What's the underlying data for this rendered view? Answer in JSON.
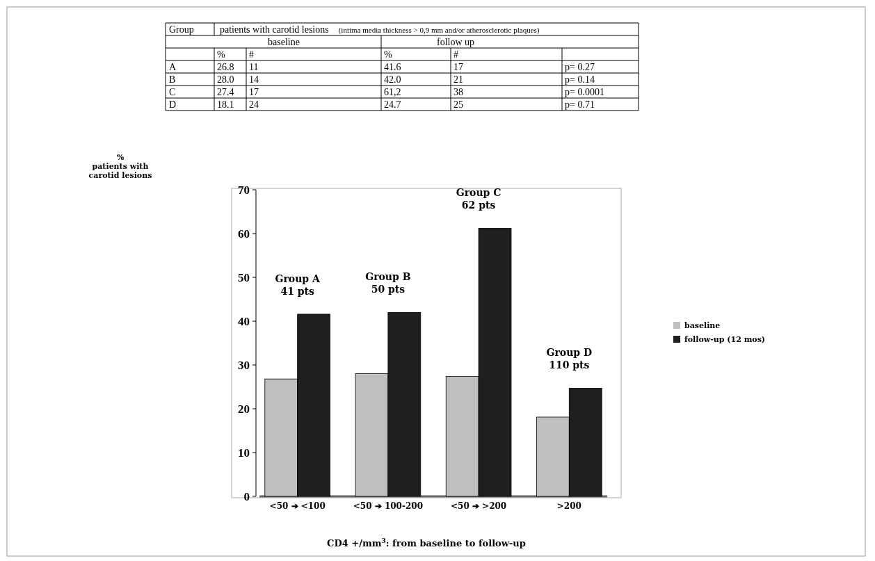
{
  "chart_data": [
    {
      "type": "other",
      "title": "patients with carotid lesions",
      "subtitle": "(intima media thickness > 0,9 mm and/or atherosclerotic plaques)",
      "categories": [
        "baseline",
        "follow up"
      ],
      "annotations": [
        "Group",
        "%",
        "#",
        "%",
        "#"
      ],
      "y_categories": [
        "A",
        "B",
        "C",
        "D"
      ],
      "cell_labels": [
        [
          "26.8",
          "11",
          "41.6",
          "17",
          "p= 0.27"
        ],
        [
          "28.0",
          "14",
          "42.0",
          "21",
          "p= 0.14"
        ],
        [
          "27.4",
          "17",
          "61,2",
          "38",
          "p= 0.0001"
        ],
        [
          "18.1",
          "24",
          "24.7",
          "25",
          "p= 0.71"
        ]
      ]
    },
    {
      "type": "bar",
      "categories": [
        "<50 ➔ <100",
        "<50 ➔ 100-200",
        "<50 ➔ >200",
        ">200"
      ],
      "series": [
        {
          "name": "baseline",
          "color": "#bfbfbf",
          "values": [
            26.8,
            28.0,
            27.4,
            18.1
          ]
        },
        {
          "name": "follow-up (12 mos)",
          "color": "#1f1f1f",
          "values": [
            41.6,
            42.0,
            61.2,
            24.7
          ]
        }
      ],
      "ylim": [
        0,
        70
      ],
      "yticks": [
        0,
        10,
        20,
        30,
        40,
        50,
        60,
        70
      ],
      "ylabel": "%\npatients with\ncarotid lesions",
      "xlabel": "CD4 +/mm$^{3}$: from baseline to follow-up",
      "annotations": [
        {
          "text": "Group A\n41 pts",
          "x": "<50 ➔ <100",
          "y": 41.6
        },
        {
          "text": "Group B\n50 pts",
          "x": "<50 ➔ 100-200",
          "y": 42.0
        },
        {
          "text": "Group C\n62 pts",
          "x": "<50 ➔ >200",
          "y": 61.2
        },
        {
          "text": "Group D\n110 pts",
          "x": ">200",
          "y": 24.7
        }
      ],
      "legend": "right",
      "grid": false
    }
  ]
}
